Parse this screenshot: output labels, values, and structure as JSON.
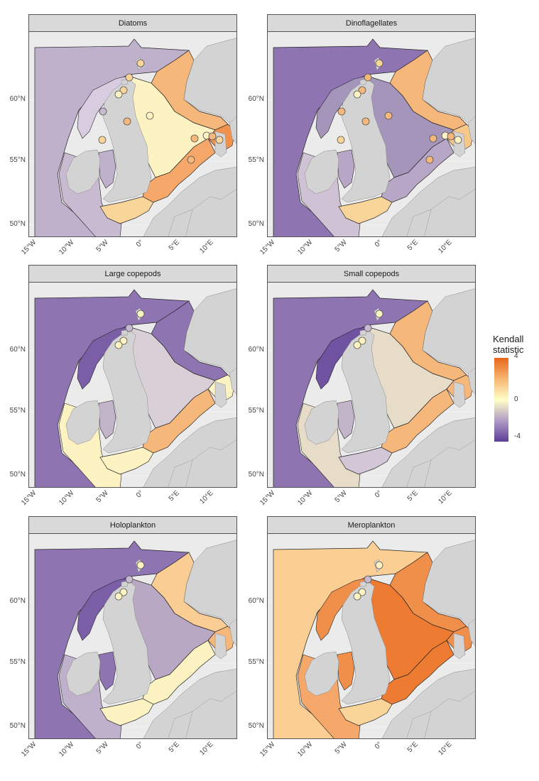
{
  "panels": [
    {
      "title": "Diatoms",
      "ocean": "#bfb0cc",
      "north": "#f6b77a",
      "central": "#fdf3c2",
      "channel": "#f9d59a",
      "irish": "#bfb0cc",
      "biscay": "#c8bad0",
      "westscot": "#d8cde0",
      "skagerrak": "#f0924d",
      "german": "#f5a86a",
      "dots": [
        "#f9d59a",
        "#f9d59a",
        "#f9d59a",
        "#fdf3c2",
        "#c8bad0",
        "#f6b77a",
        "#fdf3c2",
        "#f9d59a",
        "#f6b77a",
        "#fdf3c2",
        "#f6b77a",
        "#f9d59a",
        "#f6b77a"
      ]
    },
    {
      "title": "Dinoflagellates",
      "ocean": "#8f74b2",
      "north": "#f6b77a",
      "central": "#a595bb",
      "channel": "#f9d59a",
      "irish": "#b7a6c6",
      "biscay": "#cfc2d4",
      "westscot": "#a595bb",
      "skagerrak": "#f8c78a",
      "german": "#b7a6c6",
      "dots": [
        "#f9d59a",
        "#f6b77a",
        "#f6b77a",
        "#fdf3c2",
        "#f6b77a",
        "#f6b77a",
        "#f6b77a",
        "#f9d59a",
        "#f6b77a",
        "#fdf3c2",
        "#f6b77a",
        "#fdf3c2",
        "#f6b77a"
      ]
    },
    {
      "title": "Large copepods",
      "ocean": "#8f74b2",
      "north": "#8f74b2",
      "central": "#d9cfd6",
      "channel": "#fdf3c2",
      "irish": "#c2b4c9",
      "biscay": "#fdf3c2",
      "westscot": "#7b5fa6",
      "skagerrak": "#fdf3c2",
      "german": "#f6b77a",
      "dots": [
        "#fdf3c2",
        "#c8bad0",
        "#fdf3c2",
        "#fdf3c2"
      ]
    },
    {
      "title": "Small copepods",
      "ocean": "#8f74b2",
      "north": "#f6b77a",
      "central": "#e6dcc8",
      "channel": "#d3c6d6",
      "irish": "#c2b4c9",
      "biscay": "#e6dcc8",
      "westscot": "#6f52a0",
      "skagerrak": "#f6b77a",
      "german": "#f6b77a",
      "dots": [
        "#fdf3c2",
        "#c8bad0",
        "#fdf3c2",
        "#fdf3c2"
      ]
    },
    {
      "title": "Holoplankton",
      "ocean": "#8f74b2",
      "north": "#f9cd93",
      "central": "#b9a8c4",
      "channel": "#fdf3c2",
      "irish": "#8f74b2",
      "biscay": "#bfb0cc",
      "westscot": "#7b5fa6",
      "skagerrak": "#f6b77a",
      "german": "#fdf3c2",
      "dots": [
        "#fdf3c2",
        "#c8bad0",
        "#fdf3c2",
        "#fdf3c2"
      ]
    },
    {
      "title": "Meroplankton",
      "ocean": "#fbcf93",
      "north": "#f08f4a",
      "central": "#ee7b32",
      "channel": "#f9d59a",
      "irish": "#f08f4a",
      "biscay": "#f5a86a",
      "westscot": "#f08f4a",
      "skagerrak": "#f08f4a",
      "german": "#ee7b32",
      "dots": [
        "#fdf3c2",
        "#c8bad0",
        "#fdf3c2",
        "#fdf3c2"
      ]
    }
  ],
  "axes": {
    "lat_labels": [
      "60°N",
      "55°N",
      "50°N"
    ],
    "lon_labels": [
      "15°W",
      "10°W",
      "5°W",
      "0°",
      "5°E",
      "10°E"
    ]
  },
  "legend": {
    "title_line1": "Kendall",
    "title_line2": "statistic",
    "ticks": [
      "4",
      "0",
      "-4"
    ],
    "colors": {
      "high": "#e8671a",
      "mid": "#ffffc8",
      "low": "#5c3d97"
    }
  },
  "land_color": "#d3d3d3"
}
